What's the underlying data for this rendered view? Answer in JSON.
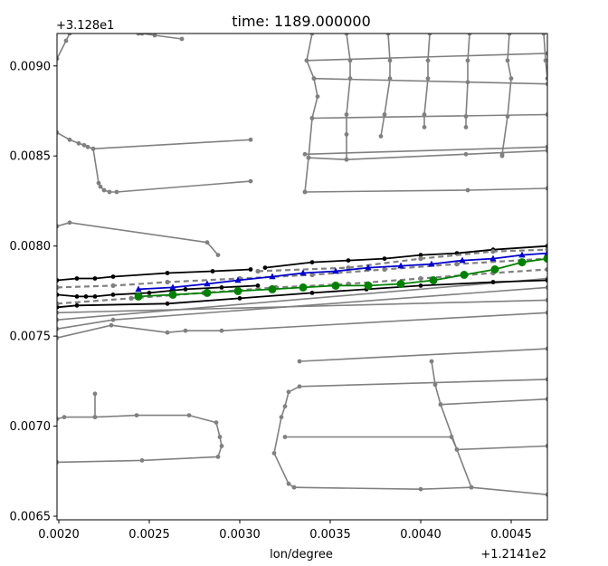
{
  "chart_data": {
    "type": "line",
    "title": "time: 1189.000000",
    "xlabel": "lon/degree",
    "ylabel": "",
    "x_offset_label": "+1.2141e2",
    "y_offset_label": "+3.128e1",
    "xlim": [
      0.00199,
      0.0047
    ],
    "ylim": [
      0.00648,
      0.00918
    ],
    "x_ticks": [
      0.002,
      0.0025,
      0.003,
      0.0035,
      0.004,
      0.0045
    ],
    "x_tick_labels": [
      "0.0020",
      "0.0025",
      "0.0030",
      "0.0035",
      "0.0040",
      "0.0045"
    ],
    "y_ticks": [
      0.0065,
      0.007,
      0.0075,
      0.008,
      0.0085,
      0.009
    ],
    "y_tick_labels": [
      "0.0065",
      "0.0070",
      "0.0075",
      "0.0080",
      "0.0085",
      "0.0090"
    ],
    "grid": false,
    "colors": {
      "road": "#808080",
      "road_highlight": "#000000",
      "trajectory_a": "#0000cc",
      "trajectory_b": "#008000"
    },
    "series": [
      {
        "style": "road",
        "points": [
          [
            0.00199,
            0.00904
          ],
          [
            0.00204,
            0.00914
          ],
          [
            0.00206,
            0.00918
          ]
        ]
      },
      {
        "style": "road",
        "points": [
          [
            0.00244,
            0.00918
          ],
          [
            0.00246,
            0.00918
          ],
          [
            0.00253,
            0.00917
          ],
          [
            0.00268,
            0.00915
          ]
        ]
      },
      {
        "style": "road",
        "points": [
          [
            0.00199,
            0.00863
          ],
          [
            0.00206,
            0.00859
          ],
          [
            0.00211,
            0.00857
          ],
          [
            0.00214,
            0.00856
          ],
          [
            0.00216,
            0.00855
          ],
          [
            0.00219,
            0.00854
          ],
          [
            0.00306,
            0.00859
          ]
        ]
      },
      {
        "style": "road",
        "points": [
          [
            0.00219,
            0.00854
          ],
          [
            0.00222,
            0.00835
          ],
          [
            0.00223,
            0.00833
          ],
          [
            0.00225,
            0.00831
          ],
          [
            0.00228,
            0.0083
          ],
          [
            0.00232,
            0.0083
          ],
          [
            0.00306,
            0.00836
          ]
        ]
      },
      {
        "style": "road",
        "points": [
          [
            0.00199,
            0.00811
          ],
          [
            0.00206,
            0.00813
          ],
          [
            0.00282,
            0.00802
          ],
          [
            0.00288,
            0.00795
          ]
        ]
      },
      {
        "style": "road",
        "points": [
          [
            0.0022,
            0.00718
          ],
          [
            0.0022,
            0.00705
          ],
          [
            0.00243,
            0.00706
          ],
          [
            0.00272,
            0.00706
          ],
          [
            0.00287,
            0.00702
          ],
          [
            0.00289,
            0.00694
          ],
          [
            0.0029,
            0.00689
          ],
          [
            0.00288,
            0.00683
          ],
          [
            0.00246,
            0.00681
          ],
          [
            0.00199,
            0.0068
          ]
        ]
      },
      {
        "style": "road",
        "points": [
          [
            0.00199,
            0.00704
          ],
          [
            0.00203,
            0.00705
          ],
          [
            0.0022,
            0.00705
          ]
        ]
      },
      {
        "style": "road",
        "points": [
          [
            0.0033,
            0.00666
          ],
          [
            0.00327,
            0.00668
          ],
          [
            0.00319,
            0.00685
          ],
          [
            0.00323,
            0.00705
          ],
          [
            0.00325,
            0.00711
          ],
          [
            0.00327,
            0.00719
          ],
          [
            0.00333,
            0.00722
          ],
          [
            0.0047,
            0.00726
          ]
        ]
      },
      {
        "style": "road",
        "points": [
          [
            0.00333,
            0.00736
          ],
          [
            0.0047,
            0.00743
          ]
        ]
      },
      {
        "style": "road",
        "points": [
          [
            0.00325,
            0.00694
          ],
          [
            0.00417,
            0.00694
          ],
          [
            0.0042,
            0.00687
          ],
          [
            0.0047,
            0.00689
          ]
        ]
      },
      {
        "style": "road",
        "points": [
          [
            0.00406,
            0.00736
          ],
          [
            0.00408,
            0.00723
          ],
          [
            0.00411,
            0.00712
          ],
          [
            0.0047,
            0.00715
          ]
        ]
      },
      {
        "style": "road",
        "points": [
          [
            0.00411,
            0.00712
          ],
          [
            0.0042,
            0.00687
          ],
          [
            0.00428,
            0.00666
          ]
        ]
      },
      {
        "style": "road",
        "points": [
          [
            0.0033,
            0.00666
          ],
          [
            0.004,
            0.00665
          ],
          [
            0.00428,
            0.00666
          ],
          [
            0.0047,
            0.00662
          ]
        ]
      },
      {
        "style": "road",
        "points": [
          [
            0.00199,
            0.00759
          ],
          [
            0.0047,
            0.00782
          ]
        ]
      },
      {
        "style": "road",
        "points": [
          [
            0.00199,
            0.00754
          ],
          [
            0.0023,
            0.00759
          ],
          [
            0.0047,
            0.00777
          ]
        ]
      },
      {
        "style": "road",
        "points": [
          [
            0.00199,
            0.00749
          ],
          [
            0.00229,
            0.00756
          ],
          [
            0.0026,
            0.00752
          ],
          [
            0.0027,
            0.00753
          ],
          [
            0.0029,
            0.00753
          ],
          [
            0.0047,
            0.00763
          ]
        ]
      },
      {
        "style": "road",
        "points": [
          [
            0.00199,
            0.00763
          ],
          [
            0.0047,
            0.0077
          ]
        ]
      },
      {
        "style": "road",
        "points": [
          [
            0.0034,
            0.00918
          ],
          [
            0.00337,
            0.00903
          ],
          [
            0.00341,
            0.00893
          ],
          [
            0.00343,
            0.00883
          ],
          [
            0.0034,
            0.00871
          ],
          [
            0.00338,
            0.00849
          ],
          [
            0.00336,
            0.0083
          ]
        ]
      },
      {
        "style": "road",
        "points": [
          [
            0.00359,
            0.00918
          ],
          [
            0.00361,
            0.00903
          ],
          [
            0.00361,
            0.00893
          ],
          [
            0.00359,
            0.00873
          ],
          [
            0.00359,
            0.00862
          ],
          [
            0.00359,
            0.00848
          ]
        ]
      },
      {
        "style": "road",
        "points": [
          [
            0.00382,
            0.00918
          ],
          [
            0.00383,
            0.00903
          ],
          [
            0.00383,
            0.00893
          ],
          [
            0.0038,
            0.00873
          ],
          [
            0.00378,
            0.00861
          ]
        ]
      },
      {
        "style": "road",
        "points": [
          [
            0.00405,
            0.00918
          ],
          [
            0.00404,
            0.00903
          ],
          [
            0.00404,
            0.00893
          ],
          [
            0.00402,
            0.00873
          ],
          [
            0.00402,
            0.00866
          ]
        ]
      },
      {
        "style": "road",
        "points": [
          [
            0.00427,
            0.00918
          ],
          [
            0.00426,
            0.00903
          ],
          [
            0.00426,
            0.00891
          ],
          [
            0.00425,
            0.00872
          ],
          [
            0.00425,
            0.00866
          ]
        ]
      },
      {
        "style": "road",
        "points": [
          [
            0.00449,
            0.00918
          ],
          [
            0.00448,
            0.00903
          ],
          [
            0.0045,
            0.00893
          ],
          [
            0.00448,
            0.00872
          ],
          [
            0.00445,
            0.00851
          ],
          [
            0.00445,
            0.0085
          ]
        ]
      },
      {
        "style": "road",
        "points": [
          [
            0.00468,
            0.00918
          ],
          [
            0.00469,
            0.00903
          ],
          [
            0.0047,
            0.00893
          ]
        ]
      },
      {
        "style": "road",
        "points": [
          [
            0.00337,
            0.00903
          ],
          [
            0.0047,
            0.00907
          ]
        ]
      },
      {
        "style": "road",
        "points": [
          [
            0.00341,
            0.00893
          ],
          [
            0.0047,
            0.0089
          ]
        ]
      },
      {
        "style": "road",
        "points": [
          [
            0.0034,
            0.00871
          ],
          [
            0.0047,
            0.00873
          ]
        ]
      },
      {
        "style": "road",
        "points": [
          [
            0.00336,
            0.00851
          ],
          [
            0.0047,
            0.00855
          ]
        ]
      },
      {
        "style": "road",
        "points": [
          [
            0.00338,
            0.00849
          ],
          [
            0.00359,
            0.00848
          ],
          [
            0.00425,
            0.00851
          ],
          [
            0.0047,
            0.00853
          ]
        ]
      },
      {
        "style": "road",
        "points": [
          [
            0.00336,
            0.0083
          ],
          [
            0.00426,
            0.00831
          ],
          [
            0.0047,
            0.00832
          ]
        ]
      },
      {
        "style": "highlight",
        "points": [
          [
            0.00199,
            0.00781
          ],
          [
            0.0021,
            0.00782
          ],
          [
            0.0022,
            0.00782
          ],
          [
            0.0023,
            0.00783
          ],
          [
            0.0026,
            0.00785
          ],
          [
            0.00285,
            0.00786
          ],
          [
            0.00306,
            0.00787
          ]
        ]
      },
      {
        "style": "highlight",
        "points": [
          [
            0.00314,
            0.00788
          ],
          [
            0.0034,
            0.00791
          ],
          [
            0.0036,
            0.00792
          ],
          [
            0.0038,
            0.00793
          ],
          [
            0.004,
            0.00795
          ],
          [
            0.0042,
            0.00796
          ],
          [
            0.0044,
            0.00798
          ],
          [
            0.0047,
            0.008
          ]
        ]
      },
      {
        "style": "highlight",
        "points": [
          [
            0.00199,
            0.00773
          ],
          [
            0.0021,
            0.00772
          ],
          [
            0.00215,
            0.00772
          ],
          [
            0.0022,
            0.00772
          ],
          [
            0.0023,
            0.00773
          ],
          [
            0.0025,
            0.00774
          ],
          [
            0.0027,
            0.00776
          ],
          [
            0.0029,
            0.00777
          ],
          [
            0.0031,
            0.00778
          ]
        ]
      },
      {
        "style": "highlight",
        "points": [
          [
            0.00199,
            0.00766
          ],
          [
            0.0021,
            0.00767
          ],
          [
            0.0026,
            0.00768
          ],
          [
            0.003,
            0.00771
          ],
          [
            0.0034,
            0.00774
          ],
          [
            0.0037,
            0.00776
          ],
          [
            0.004,
            0.00778
          ],
          [
            0.0044,
            0.0078
          ],
          [
            0.0047,
            0.00781
          ]
        ]
      },
      {
        "style": "dashed",
        "points": [
          [
            0.00199,
            0.00777
          ],
          [
            0.0023,
            0.00778
          ],
          [
            0.0026,
            0.0078
          ],
          [
            0.003,
            0.00782
          ],
          [
            0.0034,
            0.00784
          ],
          [
            0.0038,
            0.00787
          ],
          [
            0.0042,
            0.0079
          ],
          [
            0.0047,
            0.00793
          ]
        ]
      },
      {
        "style": "dashed",
        "points": [
          [
            0.00199,
            0.00768
          ],
          [
            0.0024,
            0.00771
          ],
          [
            0.0028,
            0.00774
          ],
          [
            0.0032,
            0.00777
          ],
          [
            0.0036,
            0.00779
          ],
          [
            0.004,
            0.00782
          ],
          [
            0.0044,
            0.00785
          ],
          [
            0.0047,
            0.00787
          ]
        ]
      },
      {
        "style": "dashed",
        "points": [
          [
            0.0031,
            0.00786
          ],
          [
            0.0036,
            0.00788
          ],
          [
            0.004,
            0.00793
          ],
          [
            0.0044,
            0.00797
          ],
          [
            0.0047,
            0.00798
          ]
        ]
      },
      {
        "style": "trajectory_a",
        "points": [
          [
            0.00244,
            0.00776
          ],
          [
            0.00263,
            0.00777
          ],
          [
            0.00282,
            0.00779
          ],
          [
            0.00299,
            0.00781
          ],
          [
            0.00318,
            0.00783
          ],
          [
            0.00335,
            0.00785
          ],
          [
            0.00353,
            0.00786
          ],
          [
            0.00371,
            0.00788
          ],
          [
            0.00389,
            0.00789
          ],
          [
            0.00406,
            0.0079
          ],
          [
            0.00423,
            0.00792
          ],
          [
            0.0044,
            0.00793
          ],
          [
            0.00456,
            0.00795
          ],
          [
            0.0047,
            0.00796
          ]
        ]
      },
      {
        "style": "trajectory_b",
        "points": [
          [
            0.00244,
            0.00772
          ],
          [
            0.00263,
            0.00773
          ],
          [
            0.00282,
            0.00774
          ],
          [
            0.00299,
            0.00775
          ],
          [
            0.00318,
            0.00776
          ],
          [
            0.00335,
            0.00777
          ],
          [
            0.00353,
            0.00778
          ],
          [
            0.00371,
            0.00778
          ],
          [
            0.00389,
            0.00779
          ],
          [
            0.00407,
            0.00781
          ],
          [
            0.00424,
            0.00784
          ],
          [
            0.00441,
            0.00787
          ],
          [
            0.00456,
            0.00791
          ],
          [
            0.0047,
            0.00793
          ]
        ]
      }
    ]
  }
}
